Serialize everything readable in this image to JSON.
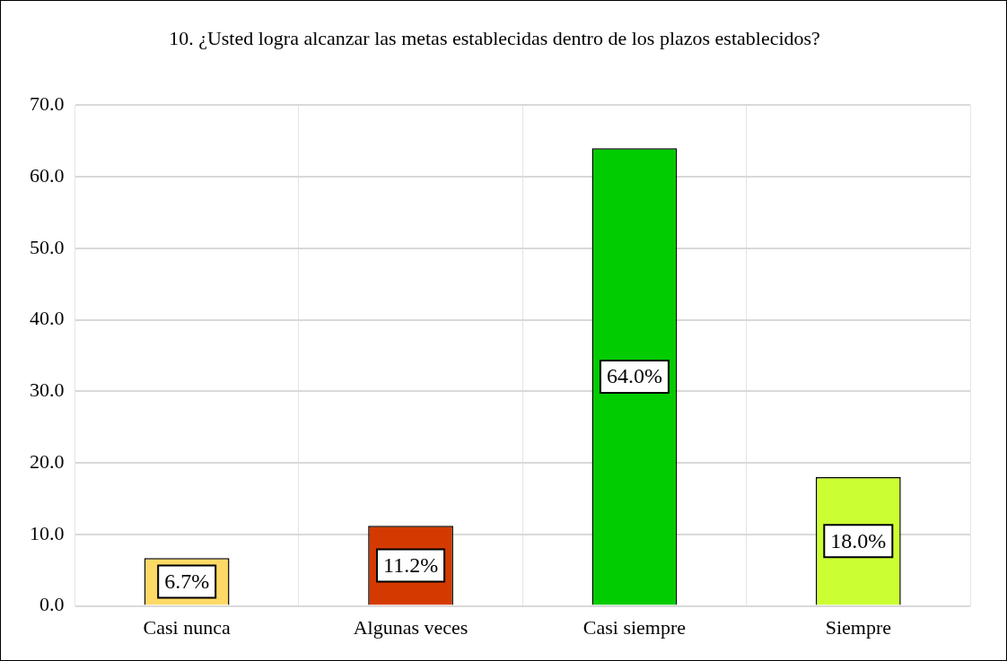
{
  "chart_data": {
    "type": "bar",
    "title": "10. ¿Usted logra alcanzar las metas establecidas dentro de los plazos establecidos?",
    "categories": [
      "Casi nunca",
      "Algunas veces",
      "Casi siempre",
      "Siempre"
    ],
    "values": [
      6.7,
      11.2,
      64.0,
      18.0
    ],
    "colors": [
      "#ffd966",
      "#d43a00",
      "#00cc00",
      "#ccff33"
    ],
    "value_labels": [
      "6.7%",
      "11.2%",
      "64.0%",
      "18.0%"
    ],
    "ylim": [
      0,
      70
    ],
    "yticks": [
      {
        "value": 0,
        "label": "0.0"
      },
      {
        "value": 10,
        "label": "10.0"
      },
      {
        "value": 20,
        "label": "20.0"
      },
      {
        "value": 30,
        "label": "30.0"
      },
      {
        "value": 40,
        "label": "40.0"
      },
      {
        "value": 50,
        "label": "50.0"
      },
      {
        "value": 60,
        "label": "60.0"
      },
      {
        "value": 70,
        "label": "70.0"
      }
    ],
    "grid": true,
    "legend": false
  }
}
